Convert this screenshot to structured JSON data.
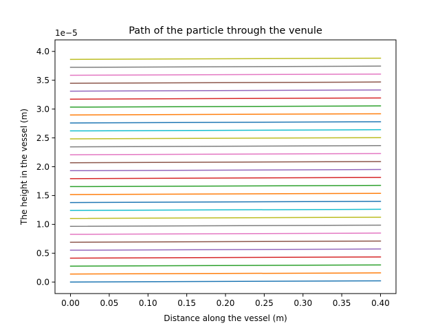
{
  "chart_data": {
    "type": "line",
    "title": "Path of the particle through the venule",
    "xlabel": "Distance along the vessel (m)",
    "ylabel": "The height in the vessel (m)",
    "y_offset_label": "1e−5",
    "xlim": [
      -0.02,
      0.42
    ],
    "ylim": [
      -0.2,
      4.2
    ],
    "x_ticks": [
      0.0,
      0.05,
      0.1,
      0.15,
      0.2,
      0.25,
      0.3,
      0.35,
      0.4
    ],
    "x_tick_labels": [
      "0.00",
      "0.05",
      "0.10",
      "0.15",
      "0.20",
      "0.25",
      "0.30",
      "0.35",
      "0.40"
    ],
    "y_ticks": [
      0.0,
      0.5,
      1.0,
      1.5,
      2.0,
      2.5,
      3.0,
      3.5,
      4.0
    ],
    "y_tick_labels": [
      "0.0",
      "0.5",
      "1.0",
      "1.5",
      "2.0",
      "2.5",
      "3.0",
      "3.5",
      "4.0"
    ],
    "grid": false,
    "legend": false,
    "x_start": 0.0,
    "x_end": 0.4,
    "series": [
      {
        "y_start": 0.0,
        "y_end": 0.021,
        "color": "#1f77b4"
      },
      {
        "y_start": 0.138,
        "y_end": 0.159,
        "color": "#ff7f0e"
      },
      {
        "y_start": 0.276,
        "y_end": 0.297,
        "color": "#2ca02c"
      },
      {
        "y_start": 0.414,
        "y_end": 0.435,
        "color": "#d62728"
      },
      {
        "y_start": 0.552,
        "y_end": 0.573,
        "color": "#9467bd"
      },
      {
        "y_start": 0.69,
        "y_end": 0.711,
        "color": "#8c564b"
      },
      {
        "y_start": 0.828,
        "y_end": 0.849,
        "color": "#e377c2"
      },
      {
        "y_start": 0.966,
        "y_end": 0.987,
        "color": "#7f7f7f"
      },
      {
        "y_start": 1.103,
        "y_end": 1.124,
        "color": "#bcbd22"
      },
      {
        "y_start": 1.241,
        "y_end": 1.262,
        "color": "#17becf"
      },
      {
        "y_start": 1.379,
        "y_end": 1.4,
        "color": "#1f77b4"
      },
      {
        "y_start": 1.517,
        "y_end": 1.538,
        "color": "#ff7f0e"
      },
      {
        "y_start": 1.655,
        "y_end": 1.676,
        "color": "#2ca02c"
      },
      {
        "y_start": 1.793,
        "y_end": 1.814,
        "color": "#d62728"
      },
      {
        "y_start": 1.931,
        "y_end": 1.952,
        "color": "#9467bd"
      },
      {
        "y_start": 2.069,
        "y_end": 2.09,
        "color": "#8c564b"
      },
      {
        "y_start": 2.207,
        "y_end": 2.228,
        "color": "#e377c2"
      },
      {
        "y_start": 2.345,
        "y_end": 2.366,
        "color": "#7f7f7f"
      },
      {
        "y_start": 2.483,
        "y_end": 2.504,
        "color": "#bcbd22"
      },
      {
        "y_start": 2.621,
        "y_end": 2.642,
        "color": "#17becf"
      },
      {
        "y_start": 2.759,
        "y_end": 2.78,
        "color": "#1f77b4"
      },
      {
        "y_start": 2.897,
        "y_end": 2.918,
        "color": "#ff7f0e"
      },
      {
        "y_start": 3.034,
        "y_end": 3.055,
        "color": "#2ca02c"
      },
      {
        "y_start": 3.172,
        "y_end": 3.193,
        "color": "#d62728"
      },
      {
        "y_start": 3.31,
        "y_end": 3.331,
        "color": "#9467bd"
      },
      {
        "y_start": 3.448,
        "y_end": 3.469,
        "color": "#8c564b"
      },
      {
        "y_start": 3.586,
        "y_end": 3.607,
        "color": "#e377c2"
      },
      {
        "y_start": 3.724,
        "y_end": 3.745,
        "color": "#7f7f7f"
      },
      {
        "y_start": 3.862,
        "y_end": 3.883,
        "color": "#bcbd22"
      }
    ]
  }
}
